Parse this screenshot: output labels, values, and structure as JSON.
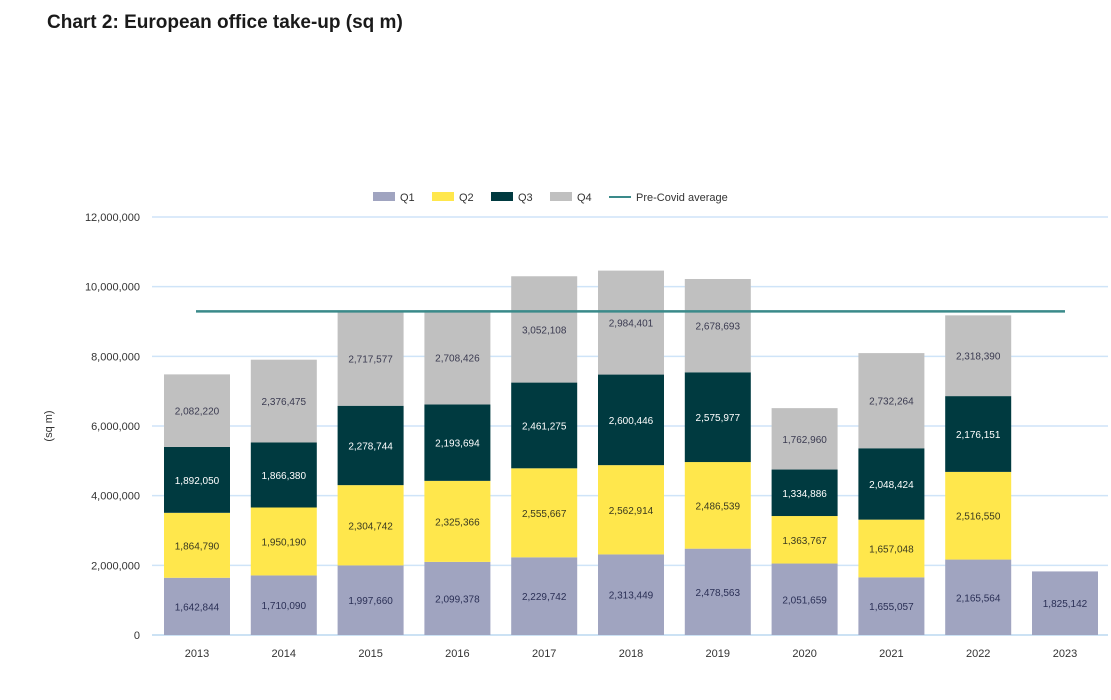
{
  "title": "Chart 2: European office take-up (sq m)",
  "chart_data": {
    "type": "bar",
    "stacked": true,
    "ylabel": "(sq m)",
    "ylim": [
      0,
      12000000
    ],
    "yticks": [
      "0",
      "2,000,000",
      "4,000,000",
      "6,000,000",
      "8,000,000",
      "10,000,000",
      "12,000,000"
    ],
    "ytick_values": [
      0,
      2000000,
      4000000,
      6000000,
      8000000,
      10000000,
      12000000
    ],
    "grid": true,
    "legend_position": "top",
    "categories": [
      "2013",
      "2014",
      "2015",
      "2016",
      "2017",
      "2018",
      "2019",
      "2020",
      "2021",
      "2022",
      "2023"
    ],
    "series": [
      {
        "name": "Q1",
        "color": "#a0a4c0",
        "label_color": "#2a2f55",
        "values": [
          1642844,
          1710090,
          1997660,
          2099378,
          2229742,
          2313449,
          2478563,
          2051659,
          1655057,
          2165564,
          1825142
        ]
      },
      {
        "name": "Q2",
        "color": "#ffe74c",
        "label_color": "#3a3a20",
        "values": [
          1864790,
          1950190,
          2304742,
          2325366,
          2555667,
          2562914,
          2486539,
          1363767,
          1657048,
          2516550,
          null
        ]
      },
      {
        "name": "Q3",
        "color": "#003a40",
        "label_color": "#ffffff",
        "values": [
          1892050,
          1866380,
          2278744,
          2193694,
          2461275,
          2600446,
          2575977,
          1334886,
          2048424,
          2176151,
          null
        ]
      },
      {
        "name": "Q4",
        "color": "#c0c0c0",
        "label_color": "#3a3a50",
        "values": [
          2082220,
          2376475,
          2717577,
          2708426,
          3052108,
          2984401,
          2678693,
          1762960,
          2732264,
          2318390,
          null
        ]
      }
    ],
    "reference_line": {
      "name": "Pre-Covid average",
      "value": 9290000,
      "color": "#3a8a8a"
    },
    "labels": [
      [
        "1,642,844",
        "1,864,790",
        "1,892,050",
        "2,082,220"
      ],
      [
        "1,710,090",
        "1,950,190",
        "1,866,380",
        "2,376,475"
      ],
      [
        "1,997,660",
        "2,304,742",
        "2,278,744",
        "2,717,577"
      ],
      [
        "2,099,378",
        "2,325,366",
        "2,193,694",
        "2,708,426"
      ],
      [
        "2,229,742",
        "2,555,667",
        "2,461,275",
        "3,052,108"
      ],
      [
        "2,313,449",
        "2,562,914",
        "2,600,446",
        "2,984,401"
      ],
      [
        "2,478,563",
        "2,486,539",
        "2,575,977",
        "2,678,693"
      ],
      [
        "2,051,659",
        "1,363,767",
        "1,334,886",
        "1,762,960"
      ],
      [
        "1,655,057",
        "1,657,048",
        "2,048,424",
        "2,732,264"
      ],
      [
        "2,165,564",
        "2,516,550",
        "2,176,151",
        "2,318,390"
      ],
      [
        "1,825,142"
      ]
    ]
  }
}
